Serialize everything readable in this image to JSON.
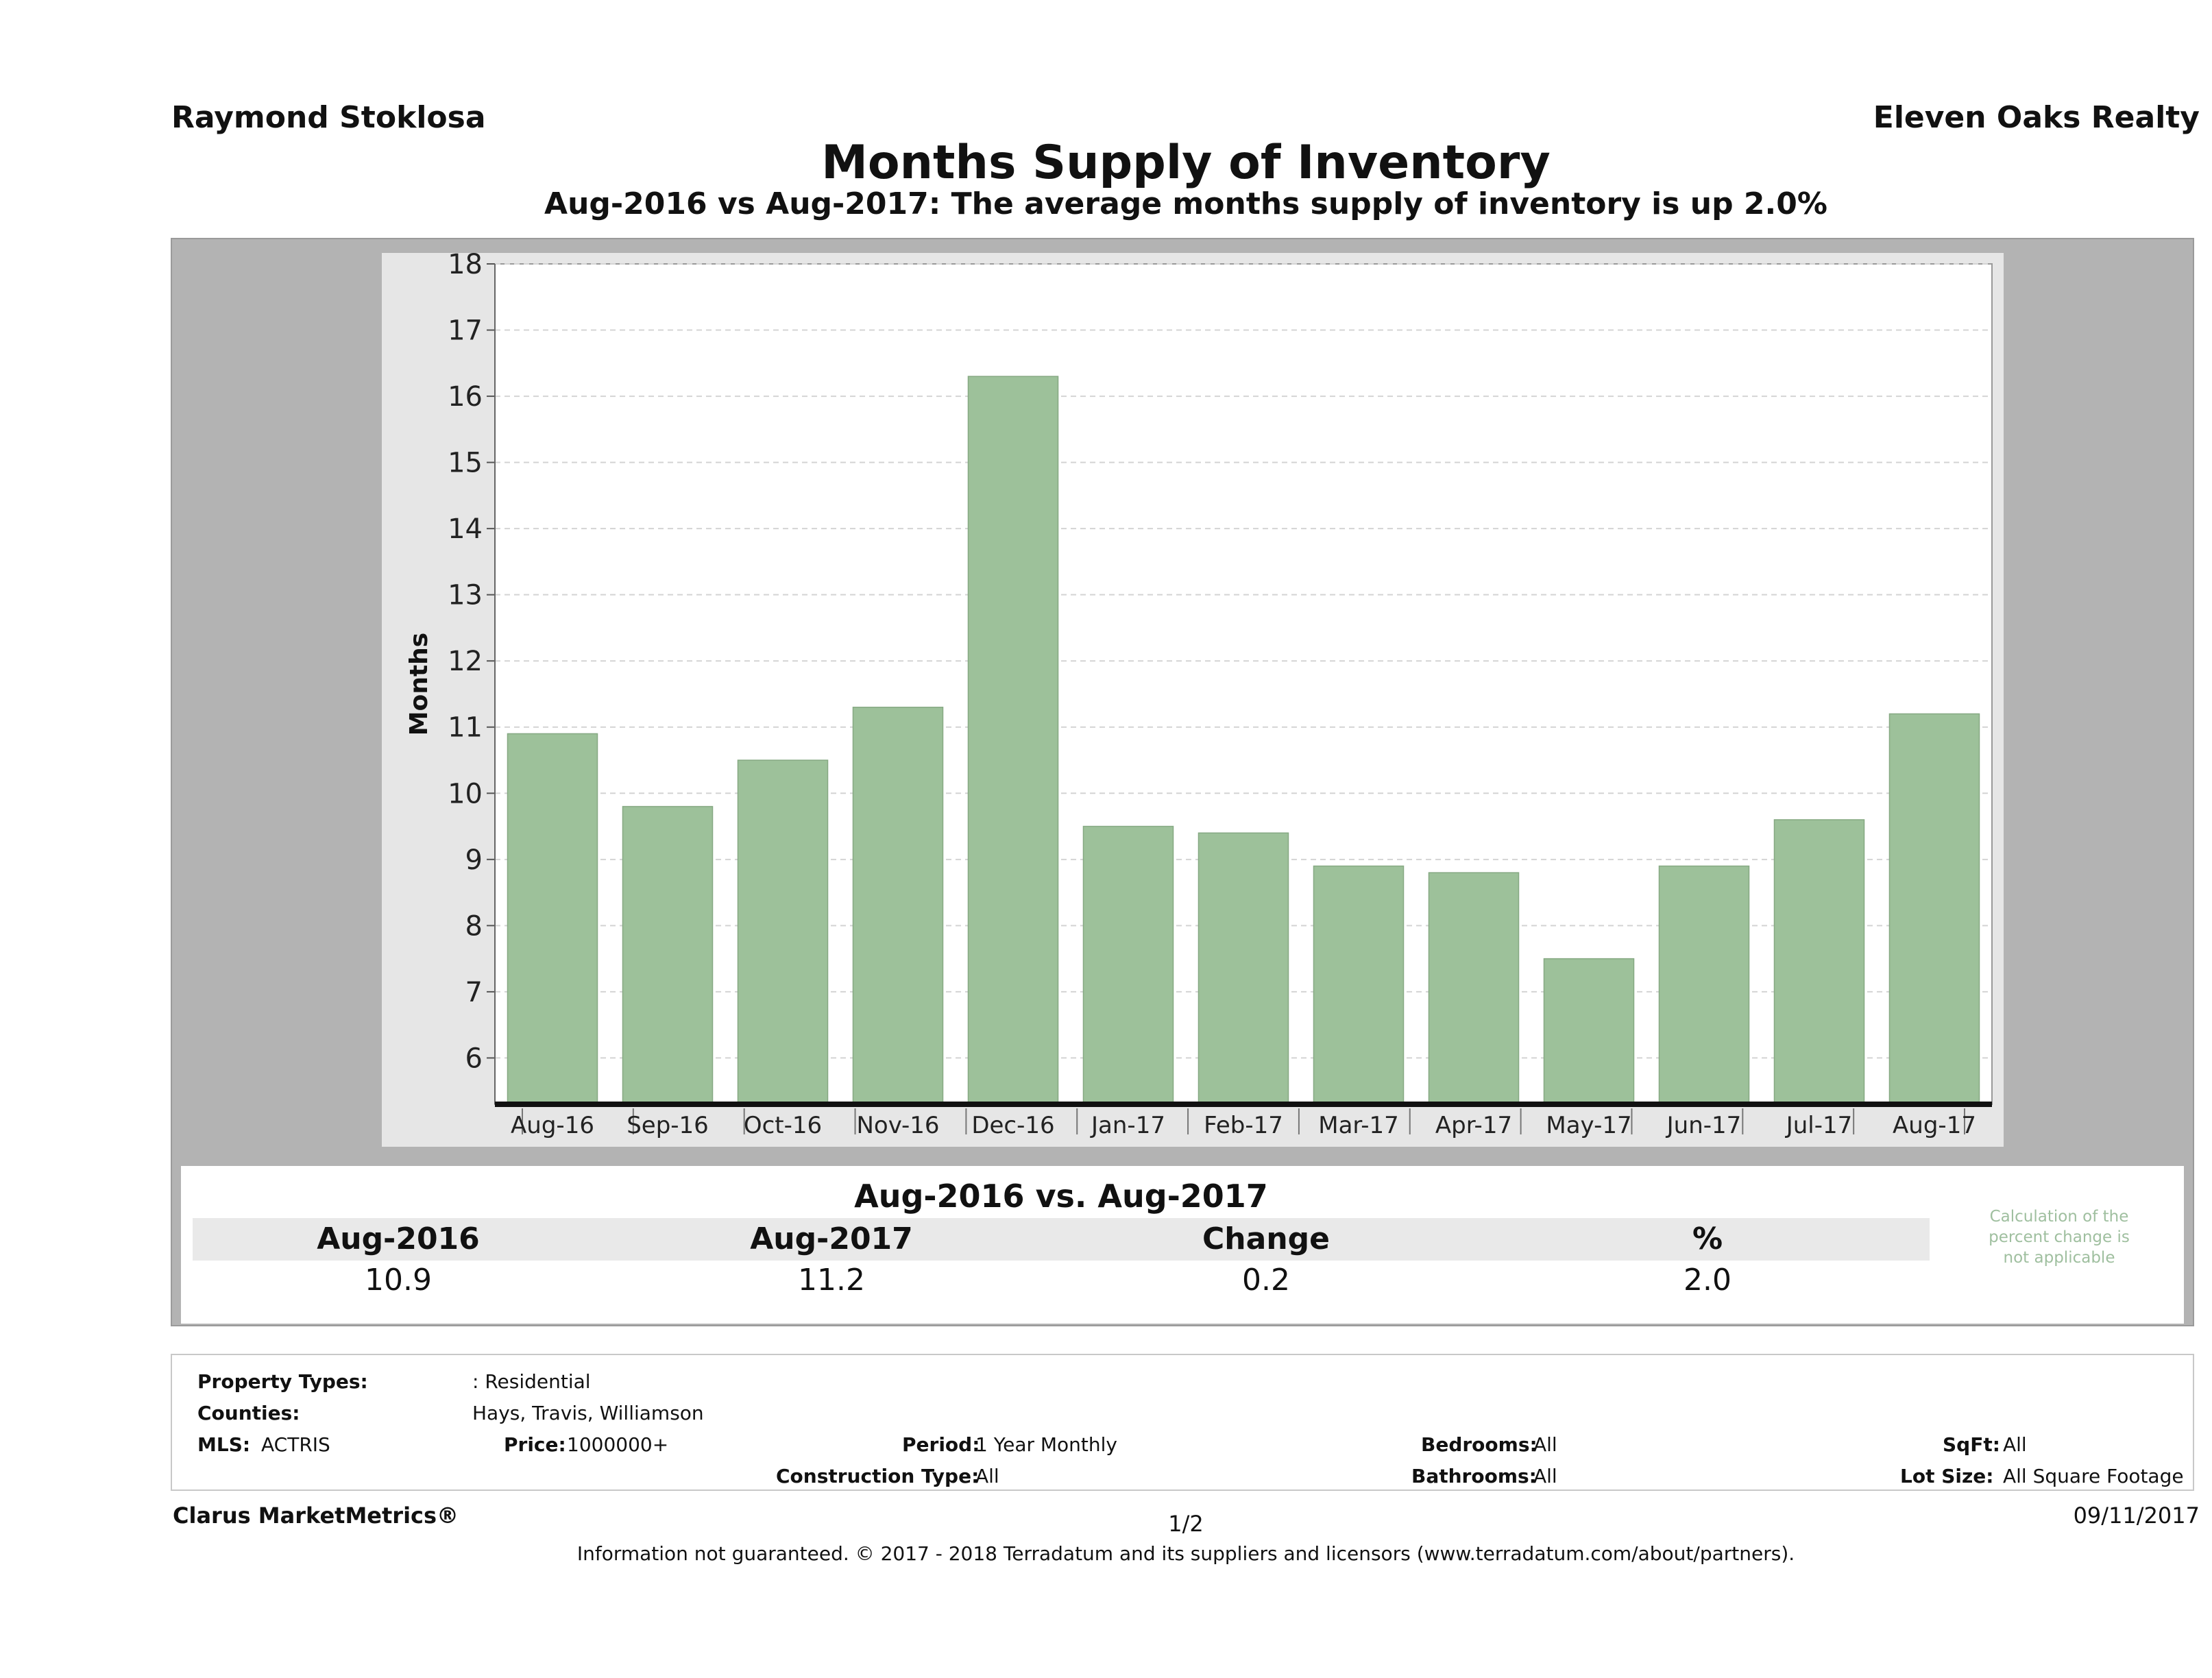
{
  "header": {
    "agent": "Raymond Stoklosa",
    "company": "Eleven Oaks Realty",
    "title": "Months Supply of Inventory",
    "subtitle": "Aug-2016 vs Aug-2017: The average months supply of inventory is up 2.0%"
  },
  "chart_data": {
    "type": "bar",
    "title": "Months Supply of Inventory",
    "subtitle": "Aug-2016 vs Aug-2017: The average months supply of inventory is up 2.0%",
    "xlabel": "",
    "ylabel": "Months",
    "ylim": [
      5.3,
      18
    ],
    "yticks": [
      6,
      7,
      8,
      9,
      10,
      11,
      12,
      13,
      14,
      15,
      16,
      17,
      18
    ],
    "categories": [
      "Aug-16",
      "Sep-16",
      "Oct-16",
      "Nov-16",
      "Dec-16",
      "Jan-17",
      "Feb-17",
      "Mar-17",
      "Apr-17",
      "May-17",
      "Jun-17",
      "Jul-17",
      "Aug-17"
    ],
    "values": [
      10.9,
      9.8,
      10.5,
      11.3,
      16.3,
      9.5,
      9.4,
      8.9,
      8.8,
      7.5,
      8.9,
      9.6,
      11.2
    ],
    "grid": true,
    "bar_color": "#9dc19a",
    "panel_color": "#b3b3b3"
  },
  "summary": {
    "title": "Aug-2016 vs. Aug-2017",
    "headers": [
      "Aug-2016",
      "Aug-2017",
      "Change",
      "%"
    ],
    "values": [
      "10.9",
      "11.2",
      "0.2",
      "2.0"
    ],
    "note": "Calculation of the percent change is not applicable"
  },
  "filters": {
    "property_types_label": "Property Types:",
    "property_types_value": ": Residential",
    "counties_label": "Counties:",
    "counties_value": "Hays, Travis, Williamson",
    "mls_label": "MLS:",
    "mls_value": "ACTRIS",
    "price_label": "Price:",
    "price_value": "1000000+",
    "period_label": "Period:",
    "period_value": "1 Year Monthly",
    "construction_label": "Construction Type:",
    "construction_value": "All",
    "bedrooms_label": "Bedrooms:",
    "bedrooms_value": "All",
    "bathrooms_label": "Bathrooms:",
    "bathrooms_value": "All",
    "sqft_label": "SqFt:",
    "sqft_value": "All",
    "lot_label": "Lot Size:",
    "lot_value": "All Square Footage"
  },
  "footer": {
    "brand": "Clarus MarketMetrics®",
    "page": "1/2",
    "date": "09/11/2017",
    "disclaimer": "Information not guaranteed. © 2017 - 2018 Terradatum and its suppliers and licensors (www.terradatum.com/about/partners)."
  }
}
